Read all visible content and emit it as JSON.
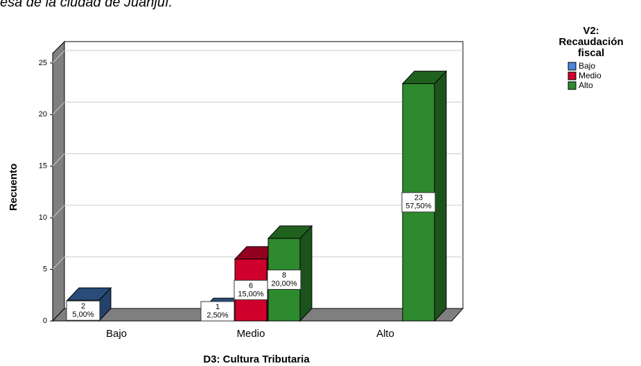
{
  "chart_data": {
    "type": "bar3d",
    "title": "esa de la ciudad de Juanjuí.",
    "x_label": "D3: Cultura Tributaria",
    "y_label": "Recuento",
    "legend_title": [
      "V2:",
      "Recaudación",
      "fiscal"
    ],
    "categories": [
      "Bajo",
      "Medio",
      "Alto"
    ],
    "series": [
      {
        "name": "Bajo",
        "color": "#3b6cb0",
        "values": [
          2,
          1,
          null
        ],
        "percentages": [
          5.0,
          2.5,
          null
        ],
        "percentage_labels": [
          "5,00%",
          "2,50%",
          null
        ]
      },
      {
        "name": "Medio",
        "color": "#d0002c",
        "values": [
          null,
          6,
          null
        ],
        "percentages": [
          null,
          15.0,
          null
        ],
        "percentage_labels": [
          null,
          "15,00%",
          null
        ]
      },
      {
        "name": "Alto",
        "color": "#2e8a2e",
        "values": [
          null,
          8,
          23
        ],
        "percentages": [
          null,
          20.0,
          57.5
        ],
        "percentage_labels": [
          null,
          "20,00%",
          "57,50%"
        ]
      }
    ],
    "ylim": [
      0,
      26
    ],
    "yticks": [
      0,
      5,
      10,
      15,
      20,
      25
    ],
    "grid": true
  }
}
